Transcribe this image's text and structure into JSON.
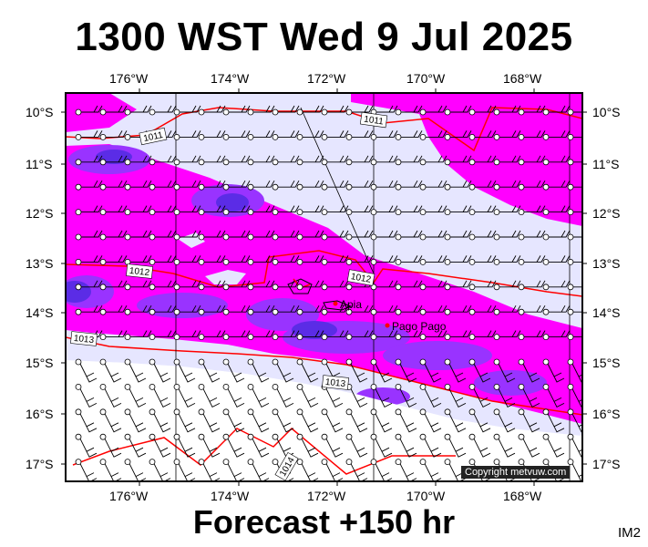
{
  "title": "1300 WST Wed 9 Jul 2025",
  "footer": "Forecast +150 hr",
  "corner_label": "IM2",
  "credit": "Copyright metvuw.com",
  "lon_labels": [
    "176°W",
    "174°W",
    "172°W",
    "170°W",
    "168°W"
  ],
  "lat_labels": [
    "10°S",
    "11°S",
    "12°S",
    "13°S",
    "14°S",
    "15°S",
    "16°S",
    "17°S"
  ],
  "places": [
    {
      "name": "Apia",
      "lon": -171.76,
      "lat": -13.83
    },
    {
      "name": "Pago Pago",
      "lon": -170.7,
      "lat": -14.28
    }
  ],
  "isobars": [
    {
      "label": "1011"
    },
    {
      "label": "1011"
    },
    {
      "label": "1012"
    },
    {
      "label": "1012"
    },
    {
      "label": "1013"
    },
    {
      "label": "1013"
    },
    {
      "label": "1014"
    }
  ],
  "colors": {
    "background_fill": "#e6e6ff",
    "magenta": "#ff00ff",
    "violet": "#9933ff",
    "blue": "#5b2ce6",
    "isobar": "#ff0000",
    "ocean_white": "#ffffff"
  }
}
